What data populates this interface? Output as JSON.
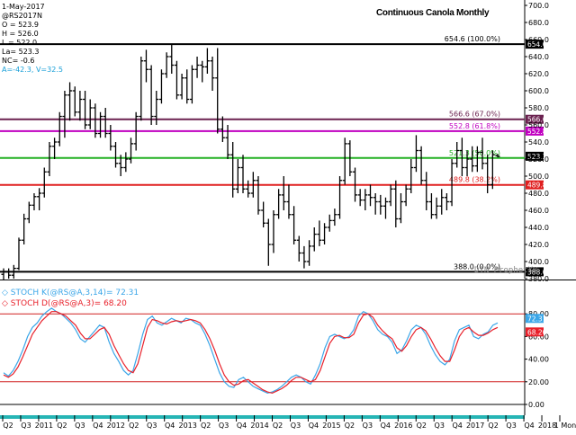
{
  "header": {
    "date": "1-May-2017",
    "symbol": "@RS2017N",
    "open": "O = 523.9",
    "high": "H = 526.0",
    "low": "L = 522.0",
    "last": "La= 523.3",
    "net_change": "NC= -0.6",
    "extra": "A=-42.3, V=32.5"
  },
  "title": "Continuous Canola Monthly",
  "watermark": "DTN ProphetX®",
  "colors": {
    "price_bars": "#000000",
    "stoch_k": "#3aa6e8",
    "stoch_d": "#e8202a",
    "fib_100": "#000000",
    "fib_67": "#6b2250",
    "fib_618": "#c000c0",
    "fib_50": "#22b022",
    "fib_382": "#e02020",
    "fib_0": "#000000",
    "last_price_box": "#000000",
    "time_axis_bg": "#26b5b5"
  },
  "chart_data": [
    {
      "type": "ohlc",
      "title": "Continuous Canola Monthly",
      "ylim": [
        380,
        700
      ],
      "yticks": [
        380,
        400,
        420,
        440,
        460,
        480,
        500,
        520,
        540,
        560,
        580,
        600,
        620,
        640,
        660,
        680,
        700
      ],
      "ytick_labels": [
        "380.0",
        "400.0",
        "420.0",
        "440.0",
        "460.0",
        "480.0",
        "500.0",
        "520.0",
        "540.0",
        "560.0",
        "580.0",
        "600.0",
        "620.0",
        "640.0",
        "660.0",
        "680.0",
        "700.0"
      ],
      "x_labels": [
        "Q2",
        "Q3",
        "2011",
        "Q2",
        "Q3",
        "Q4",
        "2012",
        "Q2",
        "Q3",
        "Q4",
        "2013",
        "Q2",
        "Q3",
        "Q4",
        "2014",
        "Q2",
        "Q3",
        "Q4",
        "2015",
        "Q2",
        "Q3",
        "Q4",
        "2016",
        "Q2",
        "Q3",
        "Q4",
        "2017",
        "Q2",
        "Q3",
        "Q4",
        "2018",
        "1 Mon"
      ],
      "bars": [
        {
          "o": 385,
          "h": 392,
          "l": 378,
          "c": 388
        },
        {
          "o": 388,
          "h": 392,
          "l": 380,
          "c": 384
        },
        {
          "o": 384,
          "h": 396,
          "l": 380,
          "c": 392
        },
        {
          "o": 392,
          "h": 428,
          "l": 390,
          "c": 425
        },
        {
          "o": 425,
          "h": 456,
          "l": 420,
          "c": 450
        },
        {
          "o": 450,
          "h": 470,
          "l": 445,
          "c": 466
        },
        {
          "o": 466,
          "h": 480,
          "l": 460,
          "c": 476
        },
        {
          "o": 476,
          "h": 486,
          "l": 460,
          "c": 480
        },
        {
          "o": 480,
          "h": 510,
          "l": 475,
          "c": 505
        },
        {
          "o": 505,
          "h": 540,
          "l": 500,
          "c": 535
        },
        {
          "o": 535,
          "h": 545,
          "l": 520,
          "c": 540
        },
        {
          "o": 540,
          "h": 575,
          "l": 535,
          "c": 570
        },
        {
          "o": 570,
          "h": 600,
          "l": 545,
          "c": 595
        },
        {
          "o": 595,
          "h": 610,
          "l": 565,
          "c": 600
        },
        {
          "o": 600,
          "h": 605,
          "l": 570,
          "c": 575
        },
        {
          "o": 575,
          "h": 600,
          "l": 565,
          "c": 590
        },
        {
          "o": 590,
          "h": 600,
          "l": 555,
          "c": 560
        },
        {
          "o": 560,
          "h": 590,
          "l": 555,
          "c": 580
        },
        {
          "o": 580,
          "h": 585,
          "l": 545,
          "c": 550
        },
        {
          "o": 550,
          "h": 575,
          "l": 545,
          "c": 570
        },
        {
          "o": 570,
          "h": 580,
          "l": 545,
          "c": 550
        },
        {
          "o": 550,
          "h": 560,
          "l": 530,
          "c": 535
        },
        {
          "o": 535,
          "h": 540,
          "l": 510,
          "c": 515
        },
        {
          "o": 515,
          "h": 525,
          "l": 500,
          "c": 510
        },
        {
          "o": 510,
          "h": 528,
          "l": 505,
          "c": 520
        },
        {
          "o": 520,
          "h": 545,
          "l": 515,
          "c": 538
        },
        {
          "o": 538,
          "h": 575,
          "l": 530,
          "c": 570
        },
        {
          "o": 570,
          "h": 640,
          "l": 565,
          "c": 635
        },
        {
          "o": 635,
          "h": 648,
          "l": 610,
          "c": 625
        },
        {
          "o": 625,
          "h": 630,
          "l": 560,
          "c": 570
        },
        {
          "o": 570,
          "h": 600,
          "l": 560,
          "c": 590
        },
        {
          "o": 590,
          "h": 625,
          "l": 585,
          "c": 620
        },
        {
          "o": 620,
          "h": 645,
          "l": 615,
          "c": 640
        },
        {
          "o": 640,
          "h": 655,
          "l": 620,
          "c": 630
        },
        {
          "o": 630,
          "h": 635,
          "l": 590,
          "c": 595
        },
        {
          "o": 595,
          "h": 620,
          "l": 590,
          "c": 615
        },
        {
          "o": 615,
          "h": 625,
          "l": 585,
          "c": 590
        },
        {
          "o": 590,
          "h": 630,
          "l": 585,
          "c": 625
        },
        {
          "o": 625,
          "h": 640,
          "l": 615,
          "c": 630
        },
        {
          "o": 630,
          "h": 635,
          "l": 610,
          "c": 628
        },
        {
          "o": 628,
          "h": 650,
          "l": 620,
          "c": 635
        },
        {
          "o": 635,
          "h": 640,
          "l": 600,
          "c": 615
        },
        {
          "o": 615,
          "h": 650,
          "l": 550,
          "c": 555
        },
        {
          "o": 555,
          "h": 570,
          "l": 540,
          "c": 545
        },
        {
          "o": 545,
          "h": 560,
          "l": 520,
          "c": 525
        },
        {
          "o": 525,
          "h": 540,
          "l": 475,
          "c": 485
        },
        {
          "o": 485,
          "h": 520,
          "l": 480,
          "c": 510
        },
        {
          "o": 510,
          "h": 525,
          "l": 480,
          "c": 485
        },
        {
          "o": 485,
          "h": 495,
          "l": 475,
          "c": 480
        },
        {
          "o": 480,
          "h": 505,
          "l": 475,
          "c": 495
        },
        {
          "o": 495,
          "h": 500,
          "l": 455,
          "c": 460
        },
        {
          "o": 460,
          "h": 470,
          "l": 440,
          "c": 445
        },
        {
          "o": 445,
          "h": 450,
          "l": 395,
          "c": 420
        },
        {
          "o": 420,
          "h": 460,
          "l": 410,
          "c": 455
        },
        {
          "o": 455,
          "h": 485,
          "l": 450,
          "c": 478
        },
        {
          "o": 478,
          "h": 500,
          "l": 460,
          "c": 470
        },
        {
          "o": 470,
          "h": 490,
          "l": 450,
          "c": 455
        },
        {
          "o": 455,
          "h": 465,
          "l": 420,
          "c": 425
        },
        {
          "o": 425,
          "h": 430,
          "l": 400,
          "c": 410
        },
        {
          "o": 410,
          "h": 418,
          "l": 392,
          "c": 400
        },
        {
          "o": 400,
          "h": 425,
          "l": 395,
          "c": 418
        },
        {
          "o": 418,
          "h": 440,
          "l": 412,
          "c": 432
        },
        {
          "o": 432,
          "h": 448,
          "l": 418,
          "c": 425
        },
        {
          "o": 425,
          "h": 445,
          "l": 420,
          "c": 440
        },
        {
          "o": 440,
          "h": 455,
          "l": 435,
          "c": 448
        },
        {
          "o": 448,
          "h": 462,
          "l": 442,
          "c": 455
        },
        {
          "o": 455,
          "h": 500,
          "l": 450,
          "c": 495
        },
        {
          "o": 495,
          "h": 545,
          "l": 490,
          "c": 538
        },
        {
          "o": 538,
          "h": 542,
          "l": 500,
          "c": 505
        },
        {
          "o": 505,
          "h": 510,
          "l": 470,
          "c": 478
        },
        {
          "o": 478,
          "h": 485,
          "l": 465,
          "c": 472
        },
        {
          "o": 472,
          "h": 485,
          "l": 460,
          "c": 478
        },
        {
          "o": 478,
          "h": 490,
          "l": 465,
          "c": 475
        },
        {
          "o": 475,
          "h": 480,
          "l": 455,
          "c": 470
        },
        {
          "o": 470,
          "h": 478,
          "l": 455,
          "c": 465
        },
        {
          "o": 465,
          "h": 475,
          "l": 450,
          "c": 470
        },
        {
          "o": 470,
          "h": 490,
          "l": 465,
          "c": 485
        },
        {
          "o": 485,
          "h": 495,
          "l": 440,
          "c": 450
        },
        {
          "o": 450,
          "h": 480,
          "l": 445,
          "c": 470
        },
        {
          "o": 470,
          "h": 490,
          "l": 465,
          "c": 485
        },
        {
          "o": 485,
          "h": 520,
          "l": 480,
          "c": 510
        },
        {
          "o": 510,
          "h": 548,
          "l": 505,
          "c": 530
        },
        {
          "o": 530,
          "h": 535,
          "l": 490,
          "c": 495
        },
        {
          "o": 495,
          "h": 505,
          "l": 460,
          "c": 470
        },
        {
          "o": 470,
          "h": 480,
          "l": 450,
          "c": 455
        },
        {
          "o": 455,
          "h": 475,
          "l": 450,
          "c": 465
        },
        {
          "o": 465,
          "h": 485,
          "l": 455,
          "c": 475
        },
        {
          "o": 475,
          "h": 480,
          "l": 460,
          "c": 470
        },
        {
          "o": 470,
          "h": 520,
          "l": 465,
          "c": 515
        },
        {
          "o": 515,
          "h": 540,
          "l": 510,
          "c": 530
        },
        {
          "o": 530,
          "h": 545,
          "l": 500,
          "c": 510
        },
        {
          "o": 510,
          "h": 530,
          "l": 500,
          "c": 520
        },
        {
          "o": 520,
          "h": 535,
          "l": 505,
          "c": 512
        },
        {
          "o": 512,
          "h": 535,
          "l": 505,
          "c": 528
        },
        {
          "o": 528,
          "h": 545,
          "l": 508,
          "c": 515
        },
        {
          "o": 515,
          "h": 525,
          "l": 480,
          "c": 490
        },
        {
          "o": 490,
          "h": 530,
          "l": 485,
          "c": 525
        },
        {
          "o": 524,
          "h": 526,
          "l": 522,
          "c": 523
        }
      ],
      "levels": [
        {
          "value": 654.6,
          "label": "654.6 (100.0%)",
          "tag": "654.6",
          "color": "#000000"
        },
        {
          "value": 566.6,
          "label": "566.6 (67.0%)",
          "tag": "566.6",
          "color": "#6b2250"
        },
        {
          "value": 552.8,
          "label": "552.8 (61.8%)",
          "tag": "552.8",
          "color": "#c000c0"
        },
        {
          "value": 521.3,
          "label": "521.3 (50.0%)",
          "tag": "",
          "color": "#22b022"
        },
        {
          "value": 489.8,
          "label": "489.8 (38.2%)",
          "tag": "489.8",
          "color": "#e02020"
        },
        {
          "value": 388.0,
          "label": "388.0 (0.0%)",
          "tag": "388.0",
          "color": "#000000"
        }
      ],
      "last_price": {
        "value": 523.3,
        "tag": "523.3"
      }
    },
    {
      "type": "line",
      "ylim": [
        0,
        100
      ],
      "yticks": [
        0,
        20,
        40,
        60,
        80
      ],
      "ytick_labels": [
        "0.00",
        "20.00",
        "40.00",
        "60.00",
        "80.00"
      ],
      "bands": [
        80,
        20
      ],
      "series": [
        {
          "name": "STOCH K(@RS@A,3,14)",
          "legend": "STOCH K(@RS@A,3,14)= 72.31",
          "last_tag": "72.31",
          "color": "#3aa6e8",
          "values": [
            28,
            25,
            30,
            38,
            48,
            60,
            68,
            72,
            78,
            82,
            85,
            82,
            80,
            76,
            72,
            66,
            58,
            55,
            60,
            65,
            70,
            68,
            55,
            45,
            38,
            30,
            26,
            30,
            45,
            62,
            75,
            78,
            72,
            70,
            73,
            76,
            74,
            72,
            76,
            75,
            72,
            70,
            62,
            52,
            40,
            28,
            20,
            16,
            15,
            22,
            24,
            20,
            16,
            14,
            12,
            10,
            11,
            13,
            16,
            20,
            24,
            26,
            24,
            20,
            18,
            26,
            36,
            50,
            60,
            62,
            60,
            58,
            60,
            66,
            78,
            82,
            80,
            74,
            66,
            62,
            60,
            55,
            45,
            48,
            56,
            66,
            70,
            68,
            62,
            52,
            44,
            38,
            35,
            40,
            56,
            66,
            68,
            70,
            60,
            58,
            62,
            64,
            70,
            72
          ]
        },
        {
          "name": "STOCH D(@RS@A,3)",
          "legend": "STOCH D(@RS@A,3)= 68.20",
          "last_tag": "68.20",
          "color": "#e8202a",
          "values": [
            26,
            24,
            27,
            33,
            42,
            52,
            62,
            68,
            74,
            78,
            82,
            82,
            80,
            78,
            74,
            70,
            63,
            58,
            58,
            62,
            66,
            68,
            62,
            52,
            44,
            36,
            30,
            28,
            36,
            52,
            68,
            75,
            74,
            72,
            71,
            73,
            74,
            73,
            74,
            75,
            74,
            72,
            66,
            58,
            48,
            36,
            26,
            20,
            17,
            18,
            21,
            22,
            19,
            16,
            13,
            11,
            10,
            12,
            14,
            17,
            21,
            24,
            24,
            22,
            20,
            22,
            30,
            42,
            54,
            60,
            61,
            59,
            59,
            62,
            72,
            79,
            80,
            77,
            70,
            65,
            61,
            58,
            50,
            47,
            52,
            60,
            66,
            68,
            65,
            58,
            50,
            43,
            38,
            38,
            48,
            60,
            66,
            68,
            64,
            61,
            61,
            63,
            66,
            68
          ]
        }
      ]
    }
  ]
}
